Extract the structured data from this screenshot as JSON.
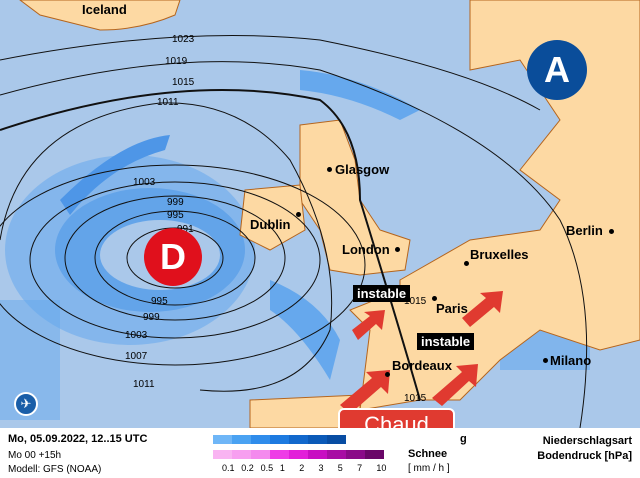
{
  "map": {
    "pressure_systems": {
      "low": "D",
      "high": "A"
    },
    "cities": {
      "iceland": "Iceland",
      "glasgow": "Glasgow",
      "dublin": "Dublin",
      "london": "London",
      "bruxelles": "Bruxelles",
      "berlin": "Berlin",
      "paris": "Paris",
      "bordeaux": "Bordeaux",
      "milano": "Milano"
    },
    "isobars": [
      "1023",
      "1019",
      "1015",
      "1011",
      "1003",
      "999",
      "995",
      "991",
      "995",
      "999",
      "1003",
      "1007",
      "1011",
      "1015",
      "1015"
    ],
    "annotations": {
      "instable_1": "instable",
      "instable_2": "instable",
      "chaud": "Chaud"
    },
    "colors": {
      "ocean": "#aac8ea",
      "land": "#fdd9a3",
      "low": "#e0101c",
      "high": "#0a4d9a",
      "annotation": "#e03a30"
    }
  },
  "legend": {
    "date": "Mo, 05.09.2022, 12..15 UTC",
    "run": "Mo 00 +15h",
    "model": "Modell: GFS (NOAA)",
    "rain_label": "g",
    "snow_label": "Schnee",
    "ticks": [
      "0.1",
      "0.2",
      "0.5",
      "1",
      "2",
      "3",
      "5",
      "7",
      "10"
    ],
    "unit": "[ mm / h ]",
    "title1": "Niederschlagsart",
    "title2": "Bodendruck [hPa]",
    "rain_colors": [
      "#6fb6f7",
      "#4aa2f2",
      "#2f8ceb",
      "#1d7ae0",
      "#1268cc",
      "#0b5ab8",
      "#084da3"
    ],
    "snow_colors": [
      "#f9b4f2",
      "#f79ff0",
      "#f48aee",
      "#ee3de6",
      "#e21fd9",
      "#c80ec2",
      "#a80ca4",
      "#8a0a88",
      "#6a0668"
    ]
  }
}
